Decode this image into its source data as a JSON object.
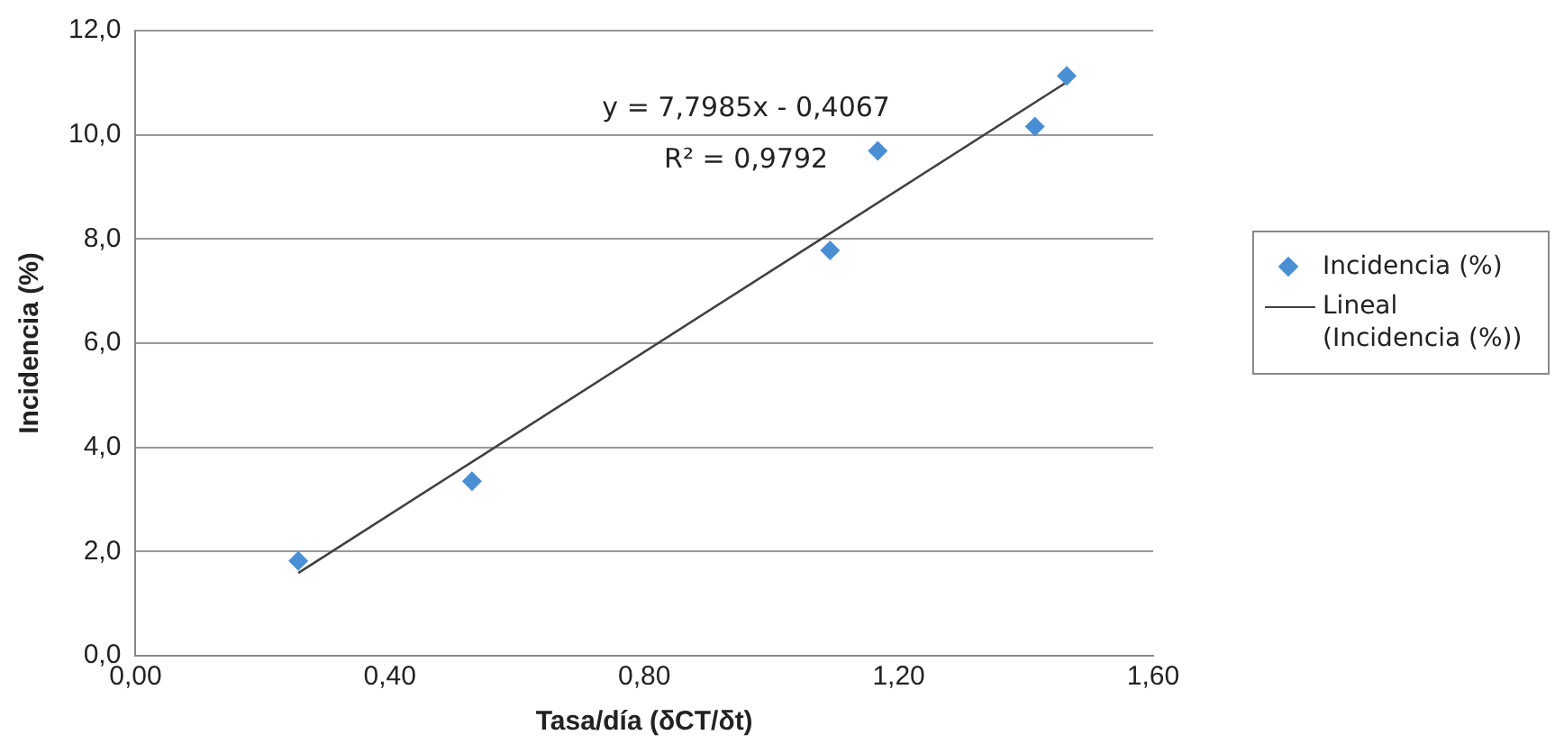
{
  "chart_data": {
    "type": "scatter",
    "xlabel": "Tasa/día (δCT/δt)",
    "ylabel": "Incidencia (%)",
    "xlim": [
      0,
      1.6
    ],
    "ylim": [
      0,
      12
    ],
    "xticks": [
      {
        "value": 0,
        "label": "0,00"
      },
      {
        "value": 0.4,
        "label": "0,40"
      },
      {
        "value": 0.8,
        "label": "0,80"
      },
      {
        "value": 1.2,
        "label": "1,20"
      },
      {
        "value": 1.6,
        "label": "1,60"
      }
    ],
    "yticks": [
      {
        "value": 0,
        "label": "0,0"
      },
      {
        "value": 2,
        "label": "2,0"
      },
      {
        "value": 4,
        "label": "4,0"
      },
      {
        "value": 6,
        "label": "6,0"
      },
      {
        "value": 8,
        "label": "8,0"
      },
      {
        "value": 10,
        "label": "10,0"
      },
      {
        "value": 12,
        "label": "12,0"
      }
    ],
    "grid": "y",
    "legend": "right",
    "marker": "diamond",
    "series": [
      {
        "name": "Incidencia (%)",
        "color": "#4a8fd4",
        "x": [
          0.256,
          0.529,
          1.092,
          1.167,
          1.414,
          1.464
        ],
        "values": [
          1.82,
          3.35,
          7.78,
          9.69,
          10.16,
          11.13
        ]
      },
      {
        "name": "Lineal (Incidencia (%))",
        "type": "line",
        "color": "#404040",
        "marker": "none",
        "line_style": "solid",
        "x": [
          0.256,
          1.464
        ],
        "values": [
          1.59,
          11.01
        ]
      }
    ],
    "annotations": [
      "y = 7,7985x - 0,4067",
      "R² = 0,9792"
    ]
  }
}
